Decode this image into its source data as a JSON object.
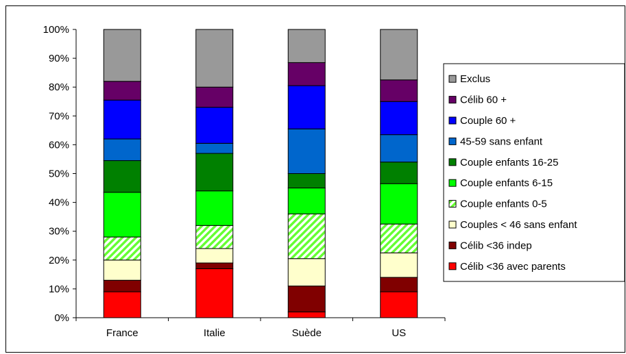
{
  "chart_data": {
    "type": "bar",
    "stacked": true,
    "percent": true,
    "categories": [
      "France",
      "Italie",
      "Suède",
      "US"
    ],
    "ylim": [
      0,
      100
    ],
    "yticks": [
      "0%",
      "10%",
      "20%",
      "30%",
      "40%",
      "50%",
      "60%",
      "70%",
      "80%",
      "90%",
      "100%"
    ],
    "grid": false,
    "legend_position": "right",
    "series": [
      {
        "name": "Célib <36 avec parents",
        "color": "#ff0000",
        "pattern": "solid",
        "values": [
          9,
          17,
          2,
          9
        ]
      },
      {
        "name": "Célib <36 indep",
        "color": "#800000",
        "pattern": "solid",
        "values": [
          4,
          2,
          9,
          5
        ]
      },
      {
        "name": "Couples < 46 sans enfant",
        "color": "#ffffcc",
        "pattern": "solid",
        "values": [
          7,
          5,
          9.5,
          8.5
        ]
      },
      {
        "name": "Couple enfants 0-5",
        "color": "#66ff33",
        "pattern": "hatch",
        "values": [
          8,
          8,
          15.5,
          10
        ]
      },
      {
        "name": "Couple enfants 6-15",
        "color": "#00ff00",
        "pattern": "solid",
        "values": [
          15.5,
          12,
          9,
          14
        ]
      },
      {
        "name": "Couple enfants 16-25",
        "color": "#008000",
        "pattern": "solid",
        "values": [
          11,
          13,
          5,
          7.5
        ]
      },
      {
        "name": "45-59 sans enfant",
        "color": "#0066cc",
        "pattern": "solid",
        "values": [
          7.5,
          3.5,
          15.5,
          9.5
        ]
      },
      {
        "name": "Couple 60 +",
        "color": "#0000ff",
        "pattern": "solid",
        "values": [
          13.5,
          12.5,
          15,
          11.5
        ]
      },
      {
        "name": "Célib 60 +",
        "color": "#660066",
        "pattern": "solid",
        "values": [
          6.5,
          7,
          8,
          7.5
        ]
      },
      {
        "name": "Exclus",
        "color": "#999999",
        "pattern": "solid",
        "values": [
          18,
          20,
          11.5,
          17.5
        ]
      }
    ]
  }
}
